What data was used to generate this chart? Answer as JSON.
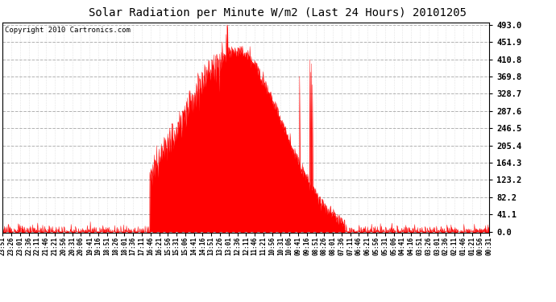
{
  "title": "Solar Radiation per Minute W/m2 (Last 24 Hours) 20101205",
  "copyright_text": "Copyright 2010 Cartronics.com",
  "y_ticks": [
    0.0,
    41.1,
    82.2,
    123.2,
    164.3,
    205.4,
    246.5,
    287.6,
    328.7,
    369.8,
    410.8,
    451.9,
    493.0
  ],
  "ymax": 493.0,
  "ymin": 0.0,
  "fill_color": "#FF0000",
  "line_color": "#FF0000",
  "dashed_line_color": "#FF0000",
  "bg_color": "#FFFFFF",
  "plot_bg_color": "#FFFFFF",
  "x_tick_labels": [
    "23:51",
    "23:26",
    "23:01",
    "22:36",
    "22:11",
    "21:46",
    "21:21",
    "20:56",
    "20:31",
    "20:06",
    "19:41",
    "19:16",
    "18:51",
    "18:26",
    "18:01",
    "17:36",
    "17:11",
    "16:46",
    "16:21",
    "15:56",
    "15:31",
    "15:06",
    "14:41",
    "14:16",
    "13:51",
    "13:26",
    "13:01",
    "12:36",
    "12:11",
    "11:46",
    "11:21",
    "10:56",
    "10:31",
    "10:06",
    "09:41",
    "09:16",
    "08:51",
    "08:26",
    "08:01",
    "07:36",
    "07:11",
    "06:46",
    "06:21",
    "05:56",
    "05:31",
    "05:06",
    "04:41",
    "04:16",
    "03:51",
    "03:26",
    "03:01",
    "02:36",
    "02:11",
    "01:46",
    "01:21",
    "00:56",
    "00:31"
  ],
  "num_points": 1440
}
